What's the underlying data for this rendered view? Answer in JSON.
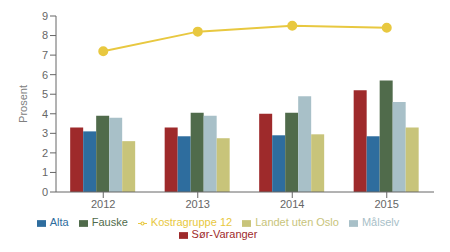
{
  "chart_data": {
    "type": "bar",
    "categories": [
      "2012",
      "2013",
      "2014",
      "2015"
    ],
    "series": [
      {
        "name": "Sør-Varanger",
        "color": "#9e2a2b",
        "values": [
          3.3,
          3.3,
          4.0,
          5.2
        ]
      },
      {
        "name": "Alta",
        "color": "#2e6d9e",
        "values": [
          3.1,
          2.85,
          2.9,
          2.85
        ]
      },
      {
        "name": "Fauske",
        "color": "#506b4b",
        "values": [
          3.9,
          4.05,
          4.05,
          5.7
        ]
      },
      {
        "name": "Målselv",
        "color": "#a8c0c8",
        "values": [
          3.8,
          3.9,
          4.9,
          4.6
        ]
      },
      {
        "name": "Landet uten Oslo",
        "color": "#c8c47a",
        "values": [
          2.6,
          2.75,
          2.95,
          3.3
        ]
      },
      {
        "name": "Kostragruppe 12",
        "type": "line",
        "color": "#e8c840",
        "marker": "circle",
        "values": [
          7.2,
          8.2,
          8.5,
          8.4
        ]
      }
    ],
    "ylabel": "Prosent",
    "ylim": [
      0,
      9
    ],
    "yticks": [
      0,
      1,
      2,
      3,
      4,
      5,
      6,
      7,
      8,
      9
    ],
    "grid": false,
    "legend": "bottom"
  }
}
